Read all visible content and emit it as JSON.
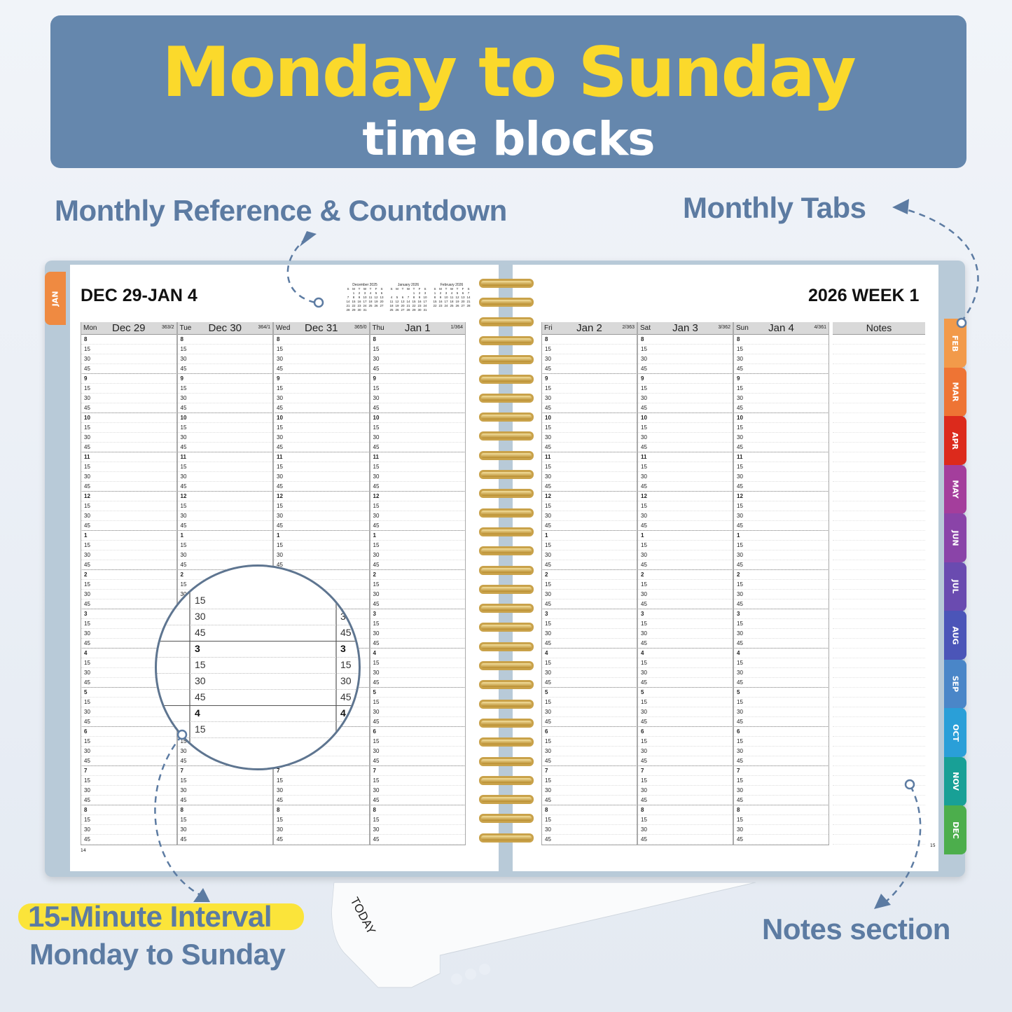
{
  "banner": {
    "title": "Monday to Sunday",
    "subtitle": "time blocks"
  },
  "callouts": {
    "reference": "Monthly Reference & Countdown",
    "tabs": "Monthly Tabs",
    "notes": "Notes section",
    "interval": "15-Minute Interval",
    "interval_sub": "Monday to Sunday"
  },
  "colors": {
    "banner": "#6587ad",
    "title": "#fbd92b",
    "callout": "#5c7ba2",
    "highlight": "#fbe43a",
    "cover": "#b8cad8",
    "spiral": "#c9a24a"
  },
  "left_page": {
    "title": "DEC 29-JAN 4",
    "page_number": "14",
    "days": [
      {
        "dow": "Mon",
        "date": "Dec 29",
        "count": "363/2"
      },
      {
        "dow": "Tue",
        "date": "Dec 30",
        "count": "364/1"
      },
      {
        "dow": "Wed",
        "date": "Dec 31",
        "count": "365/0"
      },
      {
        "dow": "Thu",
        "date": "Jan 1",
        "count": "1/364"
      }
    ]
  },
  "right_page": {
    "title": "2026 WEEK 1",
    "page_number": "15",
    "notes_label": "Notes",
    "days": [
      {
        "dow": "Fri",
        "date": "Jan 2",
        "count": "2/363"
      },
      {
        "dow": "Sat",
        "date": "Jan 3",
        "count": "3/362"
      },
      {
        "dow": "Sun",
        "date": "Jan 4",
        "count": "4/361"
      }
    ]
  },
  "hours": [
    "8",
    "9",
    "10",
    "11",
    "12",
    "1",
    "2",
    "3",
    "4",
    "5",
    "6",
    "7",
    "8"
  ],
  "minutes": [
    "15",
    "30",
    "45"
  ],
  "mini_calendars": {
    "weekdays": [
      "S",
      "M",
      "T",
      "W",
      "T",
      "F",
      "S"
    ],
    "months": [
      {
        "title": "December 2025",
        "start": 1,
        "days": 31
      },
      {
        "title": "January 2026",
        "start": 4,
        "days": 31
      },
      {
        "title": "February 2026",
        "start": 0,
        "days": 28
      }
    ]
  },
  "magnifier": {
    "rows": [
      [
        "15",
        ""
      ],
      [
        "30",
        "3"
      ],
      [
        "45",
        "45"
      ],
      [
        "3",
        "3"
      ],
      [
        "15",
        "15"
      ],
      [
        "30",
        "30"
      ],
      [
        "45",
        "45"
      ],
      [
        "4",
        "4"
      ],
      [
        "15",
        ""
      ]
    ]
  },
  "tabs": {
    "jan": {
      "label": "JAN",
      "color": "#ef8a41"
    },
    "months": [
      {
        "label": "FEB",
        "color": "#f29a4a"
      },
      {
        "label": "MAR",
        "color": "#ee7434"
      },
      {
        "label": "APR",
        "color": "#dc2a1c"
      },
      {
        "label": "MAY",
        "color": "#a43e9c"
      },
      {
        "label": "JUN",
        "color": "#8a44a8"
      },
      {
        "label": "JUL",
        "color": "#6a4bb0"
      },
      {
        "label": "AUG",
        "color": "#4b55b8"
      },
      {
        "label": "SEP",
        "color": "#4a86c8"
      },
      {
        "label": "OCT",
        "color": "#2a9fd8"
      },
      {
        "label": "NOV",
        "color": "#18a096"
      },
      {
        "label": "DEC",
        "color": "#4cae4c"
      }
    ]
  },
  "bookmark": {
    "label": "TODAY"
  }
}
